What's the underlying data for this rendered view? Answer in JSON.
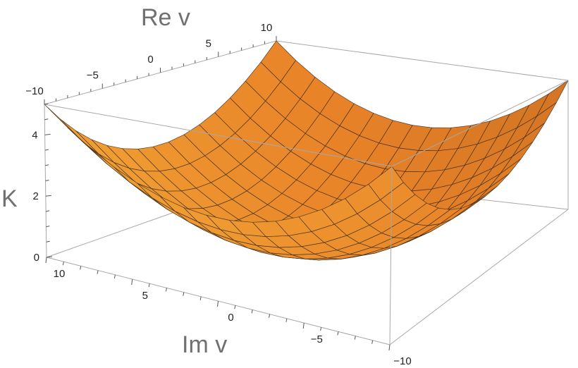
{
  "chart_data": {
    "type": "surface3d",
    "title": "",
    "zlabel": "K",
    "xlabel": "Im v",
    "ylabel": "Re v",
    "x_range": [
      -10,
      10
    ],
    "y_range": [
      -10,
      10
    ],
    "z_range": [
      0,
      5
    ],
    "x_ticks": [
      10,
      5,
      0,
      -5,
      -10
    ],
    "y_ticks": [
      -10,
      -5,
      0,
      5,
      10
    ],
    "z_ticks": [
      0,
      2,
      4
    ],
    "surface": {
      "function": "K = 0.025 * ((Re v)^2 + (Im v)^2)",
      "mesh_lines_per_axis": 15,
      "corner_values": [
        5,
        5,
        5,
        5
      ],
      "center_value": 0
    },
    "colors": {
      "surface_light": "#ffd84a",
      "surface_mid": "#f5a030",
      "surface_dark": "#5a3412",
      "box": "#a8a8a8"
    }
  }
}
